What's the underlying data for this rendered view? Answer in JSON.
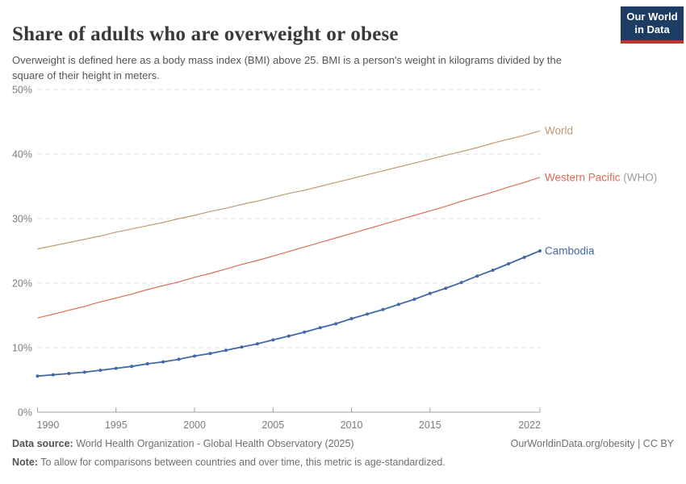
{
  "header": {
    "title": "Share of adults who are overweight or obese",
    "subtitle": "Overweight is defined here as a body mass index (BMI) above 25. BMI is a person's weight in kilograms divided by the square of their height in meters.",
    "logo": {
      "line1": "Our World",
      "line2": "in Data",
      "bg_color": "#1d3d63",
      "accent_color": "#c5342b"
    }
  },
  "chart_data": {
    "type": "line",
    "title": "Share of adults who are overweight or obese",
    "xlabel": "",
    "ylabel": "",
    "xlim": [
      1990,
      2022
    ],
    "ylim": [
      0,
      50
    ],
    "grid": "horizontal-dashed",
    "legend_position": "right-edge-labels",
    "x_ticks": [
      1990,
      1995,
      2000,
      2005,
      2010,
      2015,
      2022
    ],
    "x_tick_labels": [
      "1990",
      "1995",
      "2000",
      "2005",
      "2010",
      "2015",
      "2022"
    ],
    "y_ticks": [
      0,
      10,
      20,
      30,
      40,
      50
    ],
    "y_tick_labels": [
      "0%",
      "10%",
      "20%",
      "30%",
      "40%",
      "50%"
    ],
    "years": [
      1990,
      1991,
      1992,
      1993,
      1994,
      1995,
      1996,
      1997,
      1998,
      1999,
      2000,
      2001,
      2002,
      2003,
      2004,
      2005,
      2006,
      2007,
      2008,
      2009,
      2010,
      2011,
      2012,
      2013,
      2014,
      2015,
      2016,
      2017,
      2018,
      2019,
      2020,
      2021,
      2022
    ],
    "series": [
      {
        "name": "World",
        "name_suffix": "",
        "color": "#c09a72",
        "markers": false,
        "values": [
          25.3,
          25.8,
          26.3,
          26.8,
          27.3,
          27.9,
          28.4,
          28.9,
          29.4,
          30.0,
          30.5,
          31.1,
          31.6,
          32.2,
          32.7,
          33.3,
          33.9,
          34.4,
          35.0,
          35.6,
          36.2,
          36.8,
          37.4,
          38.0,
          38.6,
          39.2,
          39.8,
          40.4,
          41.0,
          41.7,
          42.3,
          42.9,
          43.6
        ]
      },
      {
        "name": "Western Pacific",
        "name_suffix": "(WHO)",
        "suffix_color": "#9c9c9c",
        "color": "#db6e56",
        "markers": false,
        "values": [
          14.6,
          15.2,
          15.8,
          16.4,
          17.1,
          17.7,
          18.3,
          19.0,
          19.6,
          20.2,
          20.9,
          21.5,
          22.2,
          22.9,
          23.5,
          24.2,
          24.9,
          25.6,
          26.3,
          27.0,
          27.7,
          28.4,
          29.1,
          29.8,
          30.5,
          31.2,
          31.9,
          32.7,
          33.4,
          34.1,
          34.9,
          35.6,
          36.4
        ]
      },
      {
        "name": "Cambodia",
        "name_suffix": "",
        "color": "#4268a6",
        "markers": true,
        "values": [
          5.6,
          5.8,
          6.0,
          6.2,
          6.5,
          6.8,
          7.1,
          7.5,
          7.8,
          8.2,
          8.7,
          9.1,
          9.6,
          10.1,
          10.6,
          11.2,
          11.8,
          12.4,
          13.1,
          13.7,
          14.5,
          15.2,
          15.9,
          16.7,
          17.5,
          18.4,
          19.2,
          20.1,
          21.1,
          22.0,
          23.0,
          24.0,
          25.0
        ]
      }
    ],
    "axis_color": "#a0a0a0",
    "grid_color": "#dcdcdc",
    "tick_label_color": "#7d7d7d"
  },
  "footer": {
    "source_label": "Data source:",
    "source_text": "World Health Organization - Global Health Observatory (2025)",
    "note_label": "Note:",
    "note_text": "To allow for comparisons between countries and over time, this metric is age-standardized.",
    "link_text": "OurWorldinData.org/obesity | CC BY"
  }
}
